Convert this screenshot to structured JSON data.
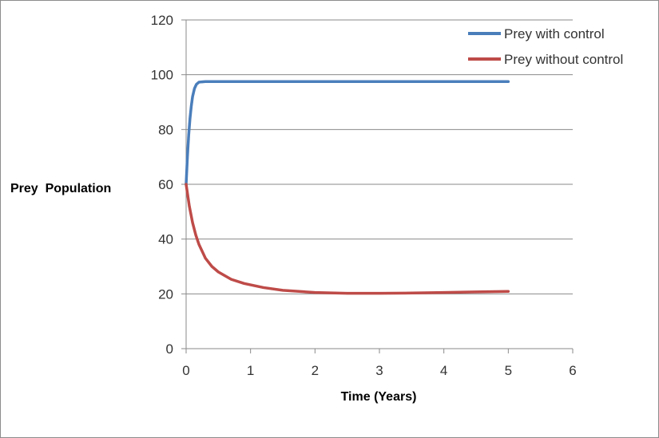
{
  "chart_data": {
    "type": "line",
    "title": "",
    "xlabel": "Time (Years)",
    "ylabel": "Prey  Population",
    "xlim": [
      0,
      6
    ],
    "ylim": [
      0,
      120
    ],
    "x_ticks": [
      0,
      1,
      2,
      3,
      4,
      5,
      6
    ],
    "y_ticks": [
      0,
      20,
      40,
      60,
      80,
      100,
      120
    ],
    "grid": "horizontal",
    "legend_position": "top-right",
    "series": [
      {
        "name": "Prey with control",
        "color": "#4a7ebb",
        "x": [
          0,
          0.02,
          0.04,
          0.06,
          0.08,
          0.1,
          0.13,
          0.16,
          0.2,
          0.3,
          0.5,
          1,
          2,
          3,
          4,
          5
        ],
        "y": [
          60,
          70,
          78,
          84,
          88.5,
          92,
          95,
          96.5,
          97.3,
          97.5,
          97.5,
          97.5,
          97.5,
          97.5,
          97.5,
          97.5
        ]
      },
      {
        "name": "Prey without control",
        "color": "#be4b48",
        "x": [
          0,
          0.05,
          0.1,
          0.15,
          0.2,
          0.3,
          0.4,
          0.5,
          0.7,
          0.9,
          1.2,
          1.5,
          2,
          2.5,
          3,
          3.5,
          4,
          4.5,
          5
        ],
        "y": [
          60,
          52,
          46,
          41.5,
          38,
          33,
          30,
          28,
          25.3,
          23.8,
          22.3,
          21.3,
          20.5,
          20.2,
          20.2,
          20.3,
          20.5,
          20.7,
          20.9
        ]
      }
    ]
  }
}
